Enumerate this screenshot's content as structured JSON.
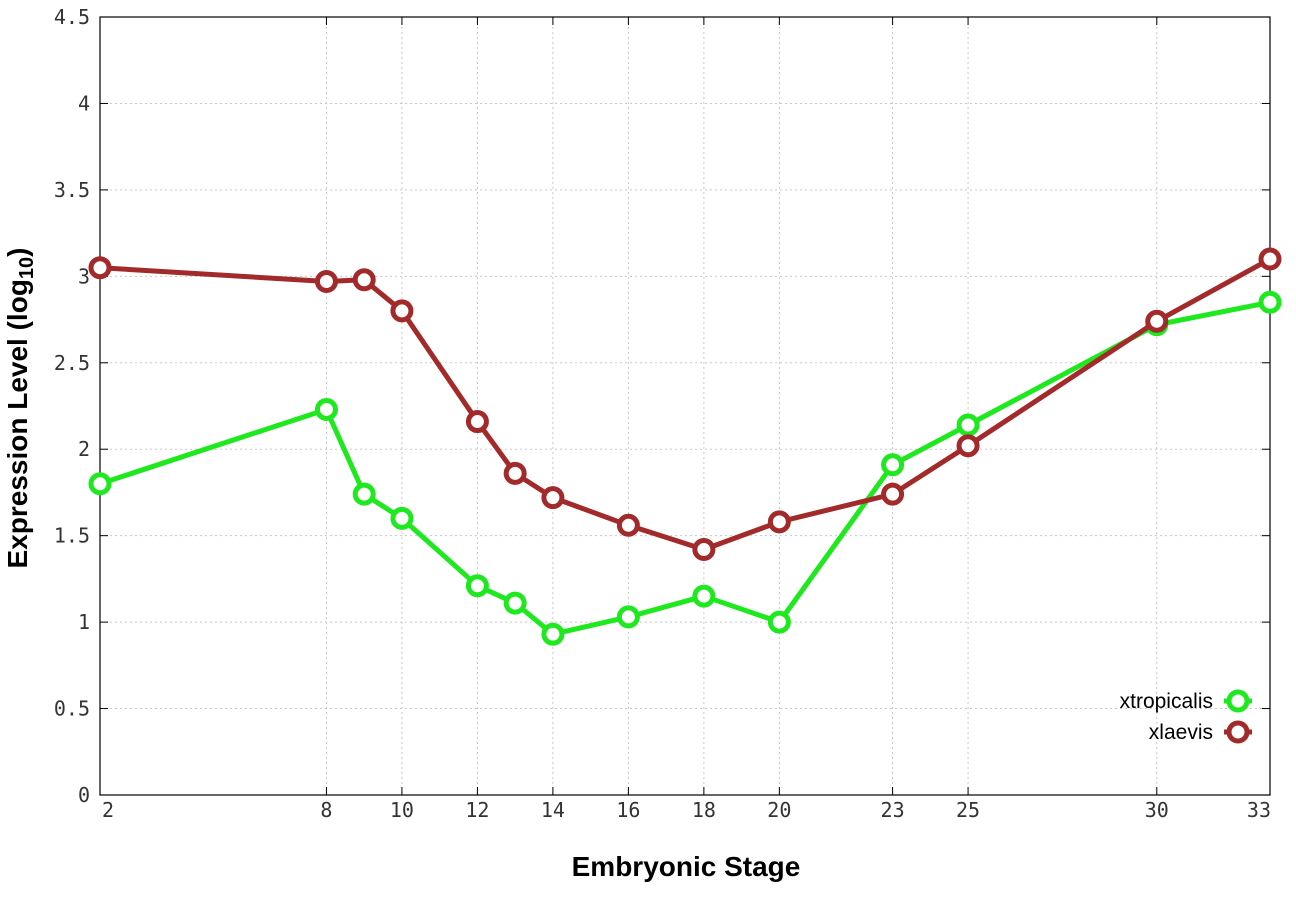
{
  "chart_data": {
    "type": "line",
    "xlabel": "Embryonic Stage",
    "ylabel_main": "Expression Level (log",
    "ylabel_sub": "10",
    "ylabel_close": ")",
    "x": [
      2,
      8,
      9,
      10,
      12,
      13,
      14,
      16,
      18,
      20,
      23,
      25,
      30,
      33
    ],
    "xticks": [
      2,
      8,
      10,
      12,
      14,
      16,
      18,
      20,
      23,
      25,
      30,
      33
    ],
    "xlim": [
      2,
      33
    ],
    "yticks": [
      "0",
      "0.5",
      "1",
      "1.5",
      "2",
      "2.5",
      "3",
      "3.5",
      "4",
      "4.5"
    ],
    "ylim": [
      0,
      4.5
    ],
    "grid": true,
    "legend_position": "bottom-right",
    "series": [
      {
        "name": "xtropicalis",
        "color": "#1ee81e",
        "marker": "open-circle",
        "values": [
          1.8,
          2.23,
          1.74,
          1.6,
          1.21,
          1.11,
          0.93,
          1.03,
          1.15,
          1.0,
          1.91,
          2.14,
          2.72,
          2.85
        ]
      },
      {
        "name": "xlaevis",
        "color": "#a22a2a",
        "marker": "open-circle",
        "values": [
          3.05,
          2.97,
          2.98,
          2.8,
          2.16,
          1.86,
          1.72,
          1.56,
          1.42,
          1.58,
          1.74,
          2.02,
          2.74,
          3.1
        ]
      }
    ]
  }
}
